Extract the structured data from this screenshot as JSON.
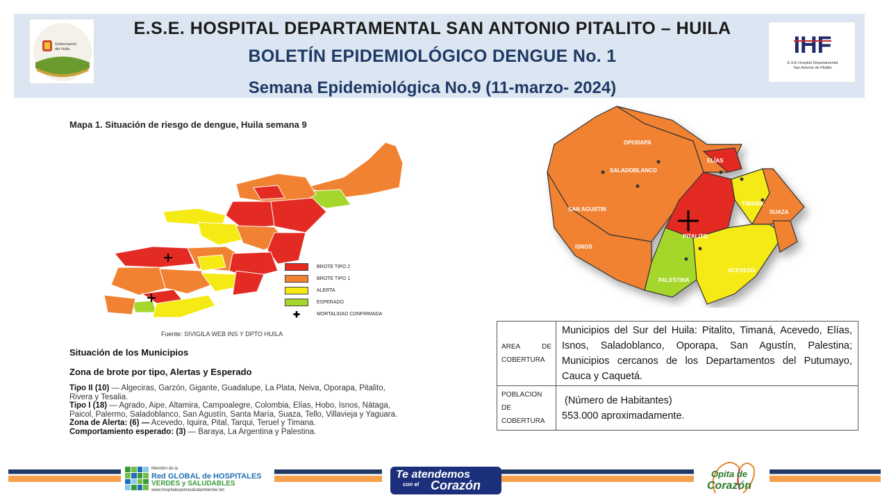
{
  "header": {
    "line1": "E.S.E. HOSPITAL  DEPARTAMENTAL   SAN  ANTONIO  PITALITO – HUILA",
    "line2": "BOLETÍN EPIDEMIOLÓGICO DENGUE No. 1",
    "line3": "Semana Epidemiológica No.9 (11-marzo- 2024)",
    "logo_left_text1": "Gobernación",
    "logo_left_text2": "del Huila",
    "logo_right_mark": "IHF",
    "logo_right_text1": "E.S.E Hospital Departamental",
    "logo_right_text2": "San Antonio de Pitalito"
  },
  "map1": {
    "title": "Mapa 1. Situación de riesgo de dengue, Huila semana 9",
    "source": "Fuente: SIVIGILA WEB INS Y DPTO HUILA",
    "legend": [
      {
        "label": "BROTE TIPO 2",
        "color": "#e32b24"
      },
      {
        "label": "BROTE TIPO 1",
        "color": "#f08232"
      },
      {
        "label": "ALERTA",
        "color": "#f5ea14"
      },
      {
        "label": "ESPERADO",
        "color": "#a5d62b"
      },
      {
        "label": "MORTALIDAD CONFIRMADA",
        "color": "#000000"
      }
    ]
  },
  "situacion": {
    "title": "Situación de los Municipios",
    "zona_title": "Zona de brote por tipo, Alertas y Esperado",
    "tipos": [
      {
        "label": "Tipo II (10)",
        "text": " — Algeciras, Garzón, Gigante, Guadalupe, La Plata, Neiva, Oporapa, Pitalito, Rivera y Tesalia."
      },
      {
        "label": "Tipo I (18)",
        "text": " — Agrado, Aipe, Altamira, Campoalegre, Colombia, Elías, Hobo, Isnos, Nátaga, Paicol, Palermo, Saladoblanco, San Agustín, Santa María, Suaza, Tello, Villavieja y Yaguara."
      },
      {
        "label": "Zona de Alerta: (6) —",
        "text": " Acevedo, Iquira, Pital, Tarqui, Teruel y Timana."
      },
      {
        "label": "Comportamiento esperado: (3)",
        "text": " — Baraya, La Argentina y Palestina."
      }
    ]
  },
  "map2": {
    "labels": {
      "acevedo": "ACEVEDO",
      "san_agustin": "SAN AGUSTIN",
      "palestina": "PALESTINA",
      "timana": "TIMANÁ",
      "suaza": "SUAZA",
      "pitalito": "PITALITO",
      "oporapa": "OPORAPA",
      "saladoblanco": "SALADOBLANCO",
      "isnos": "ISNOS",
      "elias": "ELÍAS"
    }
  },
  "coverage": {
    "rows": [
      {
        "label": "AREA DE COBERTURA",
        "text": "Municipios del Sur del Huila: Pitalito, Timaná, Acevedo, Elías, Isnos, Saladoblanco, Oporapa, San Agustín, Palestina; Municipios cercanos de los Departamentos del Putumayo, Cauca y Caquetá."
      },
      {
        "label": "POBLACION DE COBERTURA",
        "text1": " (Número de Habitantes)",
        "text2": "553.000 aproximadamente."
      }
    ]
  },
  "footer": {
    "red_line1": "Miembro de la",
    "red_line2": "Red GLOBAL de HOSPITALES",
    "red_line3": "VERDES y SALUDABLES",
    "red_line4": "www.hospitalesporlasaludambiental.net",
    "corazon_line1": "Te atendemos",
    "corazon_line2": "con el",
    "corazon_line3": "Corazón",
    "opita_line1": "Opita de",
    "opita_line2": "Corazón"
  }
}
